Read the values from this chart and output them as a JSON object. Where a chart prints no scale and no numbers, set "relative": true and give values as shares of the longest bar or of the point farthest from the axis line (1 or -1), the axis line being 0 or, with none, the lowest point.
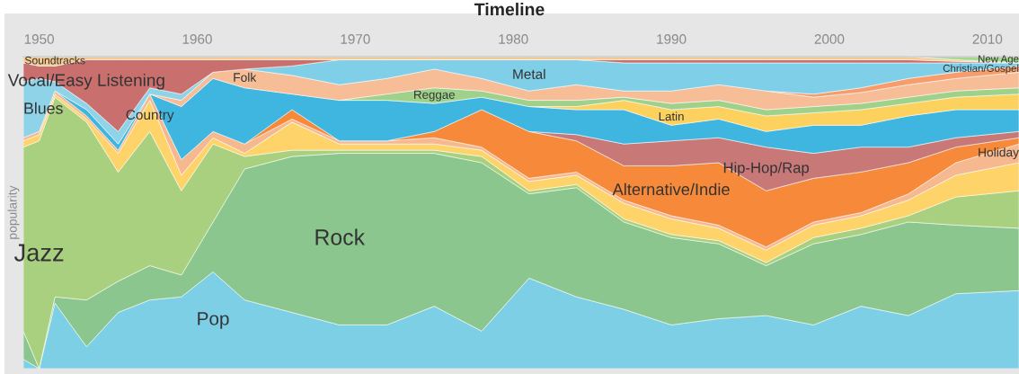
{
  "chart_data": {
    "type": "area",
    "stacked": true,
    "relative": true,
    "title": "Timeline",
    "ylabel": "popularity",
    "grid": false,
    "legend": false,
    "x": [
      1949,
      1950,
      1951,
      1953,
      1955,
      1957,
      1959,
      1961,
      1963,
      1966,
      1969,
      1972,
      1975,
      1978,
      1981,
      1984,
      1987,
      1990,
      1993,
      1996,
      1999,
      2002,
      2005,
      2008,
      2012
    ],
    "xlim": [
      1949,
      2012
    ],
    "xticks": [
      1950,
      1960,
      1970,
      1980,
      1990,
      2000,
      2010
    ],
    "series": [
      {
        "name": "Pop",
        "color": "#7dcfe6",
        "values": [
          0.03,
          0,
          0.21,
          0.07,
          0.18,
          0.22,
          0.23,
          0.31,
          0.22,
          0.18,
          0.14,
          0.14,
          0.2,
          0.12,
          0.29,
          0.23,
          0.19,
          0.14,
          0.16,
          0.17,
          0.14,
          0.2,
          0.17,
          0.24,
          0.25
        ]
      },
      {
        "name": "Rock",
        "color": "#8cc68f",
        "values": [
          0.09,
          0,
          0.02,
          0.15,
          0.1,
          0.11,
          0.07,
          0.16,
          0.42,
          0.5,
          0.55,
          0.55,
          0.49,
          0.54,
          0.27,
          0.35,
          0.28,
          0.28,
          0.24,
          0.16,
          0.26,
          0.23,
          0.3,
          0.22,
          0.2
        ]
      },
      {
        "name": "Jazz",
        "color": "#a8d07f",
        "values": [
          0.59,
          0.73,
          0.64,
          0.57,
          0.35,
          0.43,
          0.27,
          0.25,
          0.04,
          0.02,
          0.01,
          0.01,
          0.01,
          0.02,
          0.01,
          0.01,
          0.01,
          0.01,
          0.01,
          0.01,
          0.02,
          0.02,
          0.02,
          0.09,
          0.12
        ]
      },
      {
        "name": "Country",
        "color": "#fdd36a",
        "values": [
          0.02,
          0.02,
          0.01,
          0.01,
          0.06,
          0.1,
          0.05,
          0.02,
          0.01,
          0.09,
          0.02,
          0.02,
          0.02,
          0.02,
          0.03,
          0.03,
          0.05,
          0.05,
          0.04,
          0.04,
          0.04,
          0.04,
          0.05,
          0.07,
          0.09
        ]
      },
      {
        "name": "Holiday",
        "color": "#f6b98f",
        "values": [
          0.01,
          0.01,
          0.01,
          0.01,
          0.01,
          0.02,
          0.05,
          0.02,
          0.03,
          0.01,
          0.01,
          0.01,
          0.02,
          0.01,
          0.01,
          0.01,
          0.01,
          0.01,
          0.01,
          0.01,
          0.01,
          0.01,
          0.02,
          0.04,
          0.06
        ]
      },
      {
        "name": "Alternative/Indie",
        "color": "#f68a3a",
        "values": [
          null,
          null,
          null,
          null,
          null,
          null,
          null,
          null,
          0,
          0.03,
          0,
          0,
          0.02,
          0.12,
          0.15,
          0.1,
          0.11,
          0.16,
          0.2,
          0.18,
          0.14,
          0.13,
          0.1,
          0.05,
          0.02
        ]
      },
      {
        "name": "Hip-Hop/Rap",
        "color": "#c97878",
        "values": [
          null,
          null,
          null,
          null,
          null,
          null,
          null,
          null,
          null,
          null,
          null,
          null,
          null,
          null,
          0,
          0.02,
          0.07,
          0.08,
          0.08,
          0.14,
          0.08,
          0.08,
          0.05,
          0.03,
          0.02
        ]
      },
      {
        "color": "#3fb6df",
        "values": [
          null,
          null,
          0,
          0.02,
          0.02,
          0,
          0.17,
          0.17,
          0.18,
          0.05,
          0.13,
          0.13,
          0.09,
          0.04,
          0.08,
          0.08,
          0.11,
          0.05,
          0.06,
          0.05,
          0.09,
          0.07,
          0.1,
          0.09,
          0.07
        ]
      },
      {
        "name": "Latin",
        "color": "#fcd15d",
        "values": [
          null,
          null,
          null,
          null,
          null,
          null,
          null,
          null,
          null,
          null,
          null,
          null,
          null,
          null,
          0,
          0.01,
          0.03,
          0.05,
          0.04,
          0.05,
          0.04,
          0.05,
          0.04,
          0.04,
          0.05
        ]
      },
      {
        "name": "Reggae",
        "color": "#9fd18a",
        "values": [
          null,
          null,
          null,
          null,
          null,
          null,
          null,
          null,
          null,
          null,
          0,
          0.02,
          0.05,
          0.02,
          0.02,
          0.02,
          0.01,
          0.02,
          0.02,
          0.02,
          0.02,
          0.02,
          0.02,
          0.02,
          0.02
        ]
      },
      {
        "name": "Folk",
        "color": "#f6bd97",
        "values": [
          null,
          null,
          null,
          null,
          null,
          0,
          0.02,
          0.02,
          0.06,
          0.06,
          0.05,
          0.05,
          0.06,
          0.04,
          0.03,
          0.05,
          0.02,
          0.04,
          0.05,
          0.06,
          0.03,
          0.035,
          0.04,
          0.04,
          0.05
        ]
      },
      {
        "name": "Christian/Gospel",
        "color": "#f79d6b",
        "values": [
          null,
          null,
          null,
          null,
          null,
          null,
          null,
          null,
          null,
          null,
          null,
          null,
          null,
          null,
          null,
          null,
          null,
          null,
          null,
          0,
          0.01,
          0.015,
          0.02,
          0.02,
          0.02
        ]
      },
      {
        "name": "Metal",
        "color": "#7fcfe8",
        "values": [
          null,
          null,
          null,
          null,
          null,
          null,
          null,
          null,
          0,
          0.03,
          0.08,
          0.06,
          0.03,
          0.06,
          0.1,
          0.08,
          0.09,
          0.09,
          0.07,
          0.09,
          0.1,
          0.08,
          0.05,
          0.03,
          0.01
        ]
      },
      {
        "name": "Blues",
        "color": "#8fd3e8",
        "values": [
          0.18,
          0.17,
          0.03,
          0.02,
          0.04,
          0.02,
          0.02,
          0,
          null,
          null,
          null,
          null,
          null,
          null,
          null,
          null,
          null,
          null,
          null,
          null,
          null,
          null,
          null,
          null,
          null
        ]
      },
      {
        "name": "Vocal/Easy Listening",
        "color": "#c9706e",
        "values": [
          0.06,
          0.04,
          0.05,
          0.14,
          0.23,
          0.09,
          0.11,
          0.04,
          0.03,
          0.02,
          0,
          0,
          0,
          0,
          0,
          0,
          0.01,
          0.01,
          0.01,
          0.01,
          0.01,
          0.01,
          0.01,
          0.005,
          0
        ]
      },
      {
        "name": "Soundtracks",
        "color": "#f5c98f",
        "values": [
          0.02,
          0.03,
          0.03,
          0.01,
          0.01,
          0.01,
          0.01,
          0.01,
          0.01,
          0.01,
          0.01,
          0.01,
          0.01,
          0.01,
          0.01,
          0.01,
          0.01,
          0.01,
          0.01,
          0.01,
          0.01,
          0.01,
          0.01,
          0.005,
          0
        ]
      },
      {
        "name": "New Age",
        "color": "#a6d98e",
        "values": [
          null,
          null,
          null,
          null,
          null,
          null,
          null,
          null,
          null,
          null,
          null,
          null,
          null,
          null,
          null,
          null,
          null,
          null,
          null,
          null,
          null,
          null,
          0,
          0.01,
          0.02
        ]
      }
    ]
  }
}
